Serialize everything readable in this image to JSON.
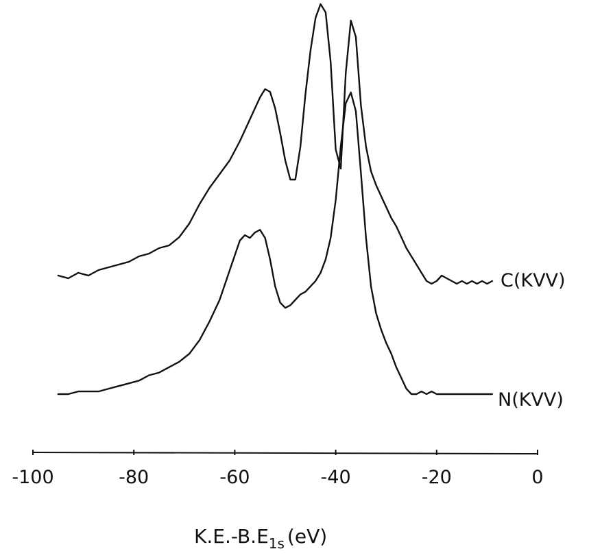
{
  "chart_data": {
    "type": "line",
    "xlabel_main": "K.E.-B.E",
    "xlabel_sub": "1s",
    "xlabel_unit": "(eV)",
    "xlim": [
      -100,
      0
    ],
    "xticks": [
      "-100",
      "-80",
      "-60",
      "-40",
      "-20",
      "0"
    ],
    "xtick_values": [
      -100,
      -80,
      -60,
      -40,
      -20,
      0
    ],
    "y_axis_shown": false,
    "grid": false,
    "series": [
      {
        "name": "C(KVV)",
        "color": "#111111",
        "x": [
          -95,
          -93,
          -91,
          -89,
          -87,
          -85,
          -83,
          -81,
          -79,
          -77,
          -75,
          -73,
          -71,
          -69,
          -67,
          -65,
          -63,
          -61,
          -59,
          -57,
          -55,
          -54,
          -53,
          -52,
          -51,
          -50,
          -49,
          -48,
          -47,
          -46,
          -45,
          -44,
          -43,
          -42,
          -41,
          -40,
          -39,
          -38,
          -37,
          -36,
          -35,
          -34,
          -33,
          -32,
          -31,
          -30,
          -29,
          -28,
          -27,
          -26,
          -25,
          -24,
          -23,
          -22,
          -21,
          -20,
          -19,
          -18,
          -17,
          -16,
          -15,
          -14,
          -13,
          -12,
          -11,
          -10,
          -9
        ],
        "y": [
          0.04,
          0.03,
          0.05,
          0.04,
          0.06,
          0.07,
          0.08,
          0.09,
          0.11,
          0.12,
          0.14,
          0.15,
          0.18,
          0.23,
          0.3,
          0.36,
          0.41,
          0.46,
          0.53,
          0.61,
          0.69,
          0.72,
          0.71,
          0.65,
          0.56,
          0.46,
          0.39,
          0.39,
          0.51,
          0.7,
          0.86,
          0.98,
          1.03,
          1.0,
          0.82,
          0.5,
          0.43,
          0.78,
          0.97,
          0.91,
          0.66,
          0.51,
          0.42,
          0.37,
          0.33,
          0.29,
          0.25,
          0.22,
          0.18,
          0.14,
          0.11,
          0.08,
          0.05,
          0.02,
          0.01,
          0.02,
          0.04,
          0.03,
          0.02,
          0.01,
          0.02,
          0.01,
          0.02,
          0.01,
          0.02,
          0.01,
          0.02
        ]
      },
      {
        "name": "N(KVV)",
        "color": "#111111",
        "x": [
          -95,
          -93,
          -91,
          -89,
          -87,
          -85,
          -83,
          -81,
          -79,
          -77,
          -75,
          -73,
          -71,
          -69,
          -67,
          -65,
          -63,
          -61,
          -59,
          -58,
          -57,
          -56,
          -55,
          -54,
          -53,
          -52,
          -51,
          -50,
          -49,
          -48,
          -47,
          -46,
          -45,
          -44,
          -43,
          -42,
          -41,
          -40,
          -39,
          -38,
          -37,
          -36,
          -35,
          -34,
          -33,
          -32,
          -31,
          -30,
          -29,
          -28,
          -27,
          -26,
          -25,
          -24,
          -23,
          -22,
          -21,
          -20,
          -19,
          -18,
          -17,
          -16,
          -15,
          -14,
          -13,
          -12,
          -11,
          -10,
          -9
        ],
        "y": [
          0.0,
          0.0,
          0.01,
          0.01,
          0.01,
          0.02,
          0.03,
          0.04,
          0.05,
          0.07,
          0.08,
          0.1,
          0.12,
          0.15,
          0.2,
          0.27,
          0.35,
          0.46,
          0.57,
          0.59,
          0.58,
          0.6,
          0.61,
          0.58,
          0.5,
          0.4,
          0.34,
          0.32,
          0.33,
          0.35,
          0.37,
          0.38,
          0.4,
          0.42,
          0.45,
          0.5,
          0.58,
          0.72,
          0.92,
          1.08,
          1.12,
          1.05,
          0.82,
          0.58,
          0.4,
          0.3,
          0.24,
          0.19,
          0.15,
          0.1,
          0.06,
          0.02,
          0.0,
          0.0,
          0.01,
          0.0,
          0.01,
          0.0,
          0.0,
          0.0,
          0.0,
          0.0,
          0.0,
          0.0,
          0.0,
          0.0,
          0.0,
          0.0,
          0.0
        ]
      }
    ]
  }
}
